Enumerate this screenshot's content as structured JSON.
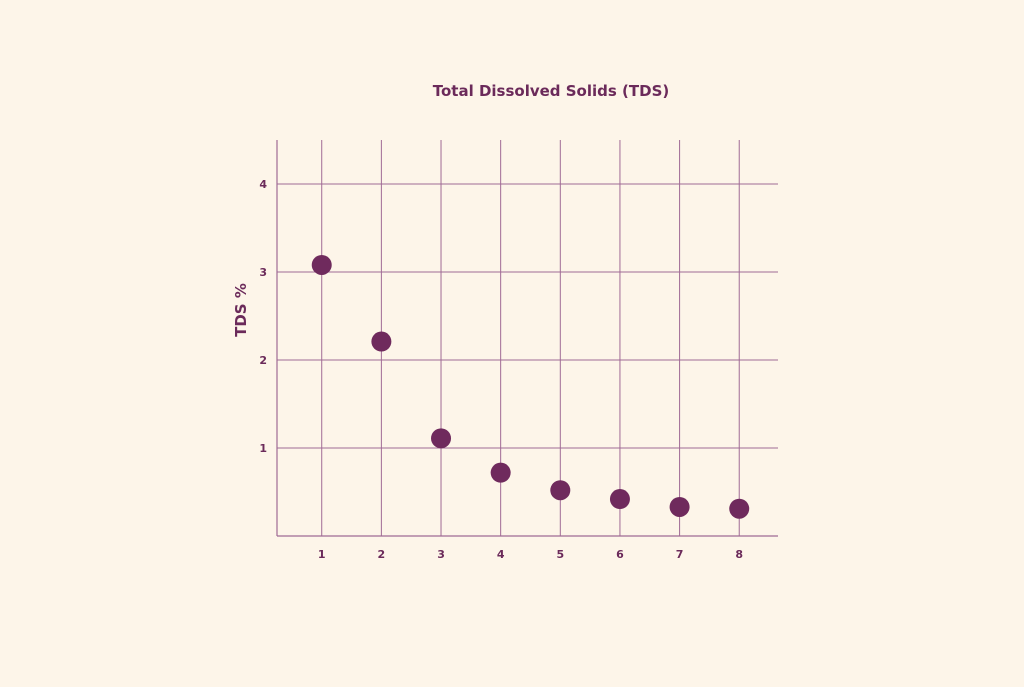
{
  "chart_data": {
    "type": "scatter",
    "title": "Total Dissolved Solids (TDS)",
    "xlabel": "",
    "ylabel": "TDS %",
    "x": [
      1,
      2,
      3,
      4,
      5,
      6,
      7,
      8
    ],
    "y": [
      3.08,
      2.21,
      1.11,
      0.72,
      0.52,
      0.42,
      0.33,
      0.31
    ],
    "x_ticks": [
      "1",
      "2",
      "3",
      "4",
      "5",
      "6",
      "7",
      "8"
    ],
    "y_ticks": [
      "1",
      "2",
      "3",
      "4"
    ],
    "xlim": [
      0.25,
      8.65
    ],
    "ylim": [
      0,
      4.5
    ],
    "grid": true,
    "colors": {
      "point": "#6f2a5d",
      "grid": "#a06a95",
      "text": "#6b2a5a",
      "background": "#fdf5e9"
    }
  }
}
